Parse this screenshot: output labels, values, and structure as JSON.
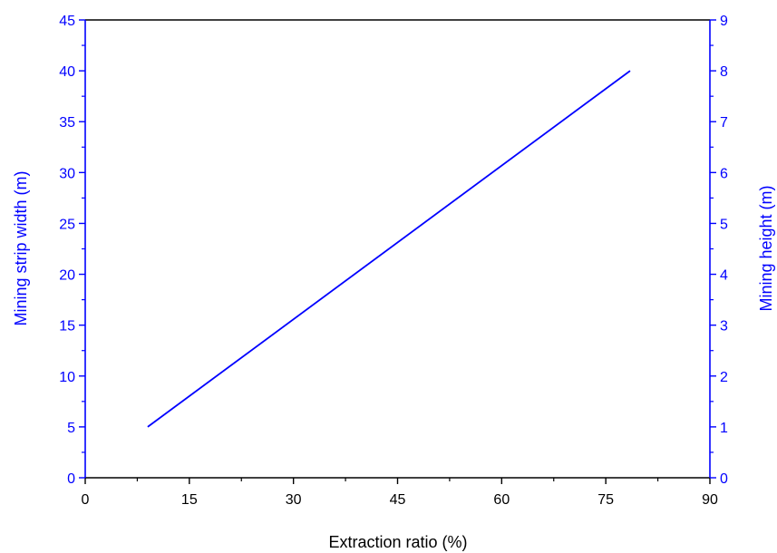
{
  "chart_data": {
    "type": "line",
    "title": "",
    "xlabel": "Extraction ratio (%)",
    "ylabel": "Mining strip width (m)",
    "y2label": "Mining height (m)",
    "xlim": [
      0,
      90
    ],
    "ylim": [
      0,
      45
    ],
    "y2lim": [
      0,
      9
    ],
    "x_ticks": [
      "0",
      "15",
      "30",
      "45",
      "60",
      "75",
      "90"
    ],
    "y_ticks": [
      "0",
      "5",
      "10",
      "15",
      "20",
      "25",
      "30",
      "35",
      "40",
      "45"
    ],
    "y2_ticks": [
      "0",
      "1",
      "2",
      "3",
      "4",
      "5",
      "6",
      "7",
      "8",
      "9"
    ],
    "grid": false,
    "colors": {
      "axis_left": "#0000ff",
      "axis_right": "#0000ff",
      "axis_x": "#000000",
      "line": "#0000ff"
    },
    "series": [
      {
        "x": [
          9.0,
          78.5
        ],
        "y": [
          5,
          40
        ]
      }
    ]
  }
}
